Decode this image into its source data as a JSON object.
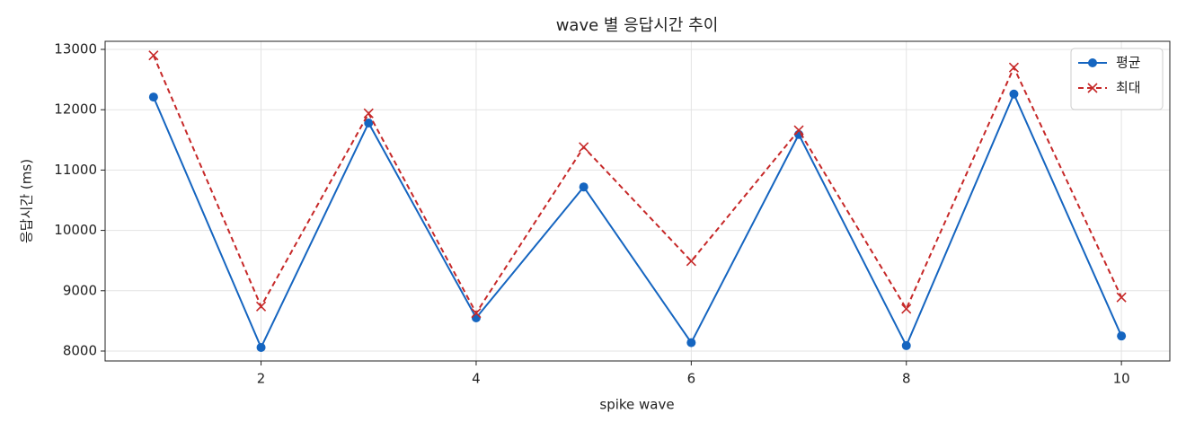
{
  "chart_data": {
    "type": "line",
    "title": "wave 별 응답시간 추이",
    "xlabel": "spike wave",
    "ylabel": "응답시간 (ms)",
    "x": [
      1,
      2,
      3,
      4,
      5,
      6,
      7,
      8,
      9,
      10
    ],
    "series": [
      {
        "name": "평균",
        "color": "#1565c0",
        "marker": "o",
        "linestyle": "solid",
        "values": [
          12210,
          8060,
          11780,
          8550,
          10720,
          8140,
          11590,
          8090,
          12260,
          8250
        ]
      },
      {
        "name": "최대",
        "color": "#c62828",
        "marker": "x",
        "linestyle": "dashed",
        "values": [
          12900,
          8740,
          11940,
          8630,
          11380,
          9490,
          11660,
          8700,
          12700,
          8890
        ]
      }
    ],
    "xlim": [
      0.55,
      10.45
    ],
    "xticks": [
      2,
      4,
      6,
      8,
      10
    ],
    "ylim": [
      7836,
      13134
    ],
    "yticks": [
      8000,
      9000,
      10000,
      11000,
      12000,
      13000
    ],
    "grid": true,
    "legend": "upper right"
  }
}
